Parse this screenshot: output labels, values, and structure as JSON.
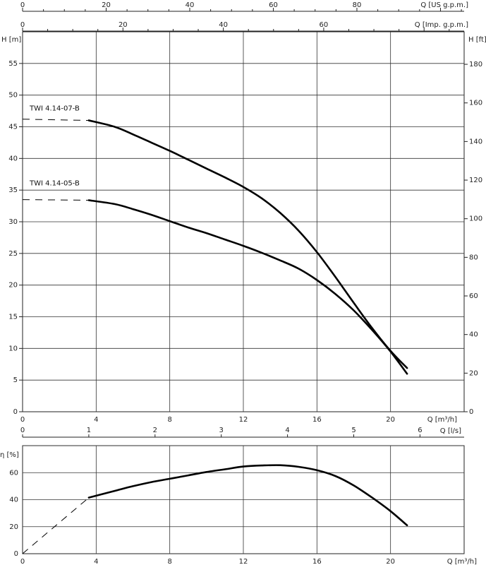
{
  "chart_data": [
    {
      "type": "line",
      "xlabel": "Q [m³/h]",
      "ylabel_left": "H [m]",
      "ylabel_right": "H [ft]",
      "xlim": [
        0,
        24
      ],
      "ylim": [
        0,
        60
      ],
      "x_ticks": [
        "0",
        "4",
        "8",
        "12",
        "16",
        "20"
      ],
      "y_ticks_left": [
        "0",
        "5",
        "10",
        "15",
        "20",
        "25",
        "30",
        "35",
        "40",
        "45",
        "50",
        "55"
      ],
      "y_ticks_right": [
        "0",
        "20",
        "40",
        "60",
        "80",
        "100",
        "120",
        "140",
        "160",
        "180"
      ],
      "top_axes": [
        {
          "label": "Q [US g.p.m.]",
          "ticks": [
            "0",
            "20",
            "40",
            "60",
            "80"
          ]
        },
        {
          "label": "Q [Imp. g.p.m.]",
          "ticks": [
            "0",
            "20",
            "40",
            "60"
          ]
        }
      ],
      "bottom_axis_2": {
        "label": "Q [l/s]",
        "ticks": [
          "0",
          "1",
          "2",
          "3",
          "4",
          "5",
          "6"
        ]
      },
      "series": [
        {
          "name": "TWI 4.14-07-B",
          "x": [
            3.6,
            5,
            6,
            7,
            8,
            9,
            10,
            11,
            12,
            13,
            14,
            15,
            16,
            17,
            18,
            19,
            20,
            20.9
          ],
          "y": [
            46.0,
            45.0,
            43.8,
            42.5,
            41.2,
            39.8,
            38.4,
            37.0,
            35.5,
            33.7,
            31.4,
            28.6,
            25.2,
            21.3,
            17.2,
            13.2,
            9.6,
            6.9
          ],
          "dashed_extension": {
            "x": [
              0,
              3.6
            ],
            "y": [
              46.2,
              46.0
            ]
          }
        },
        {
          "name": "TWI 4.14-05-B",
          "x": [
            3.6,
            5,
            6,
            7,
            8,
            9,
            10,
            11,
            12,
            13,
            14,
            15,
            16,
            17,
            18,
            19,
            20,
            20.9
          ],
          "y": [
            33.4,
            32.8,
            32.0,
            31.1,
            30.1,
            29.1,
            28.2,
            27.2,
            26.2,
            25.1,
            23.9,
            22.6,
            20.8,
            18.6,
            16.0,
            12.9,
            9.5,
            6.0
          ],
          "dashed_extension": {
            "x": [
              0,
              3.6
            ],
            "y": [
              33.5,
              33.4
            ]
          }
        }
      ]
    },
    {
      "type": "line",
      "xlabel": "Q [m³/h]",
      "ylabel": "η [%]",
      "xlim": [
        0,
        24
      ],
      "ylim": [
        0,
        80
      ],
      "x_ticks": [
        "0",
        "4",
        "8",
        "12",
        "16",
        "20"
      ],
      "y_ticks": [
        "0",
        "20",
        "40",
        "60"
      ],
      "series": [
        {
          "name": "efficiency",
          "x": [
            3.6,
            5,
            6,
            7,
            8,
            9,
            10,
            11,
            12,
            13,
            14,
            15,
            16,
            17,
            18,
            19,
            20,
            20.9
          ],
          "y": [
            41.5,
            46.5,
            50.0,
            53.0,
            55.5,
            58.0,
            60.5,
            62.5,
            64.5,
            65.3,
            65.5,
            64.3,
            61.8,
            57.5,
            50.5,
            41.5,
            31.5,
            21.0
          ],
          "dashed_extension": {
            "x": [
              0,
              3.6
            ],
            "y": [
              0,
              41.5
            ]
          }
        }
      ]
    }
  ]
}
